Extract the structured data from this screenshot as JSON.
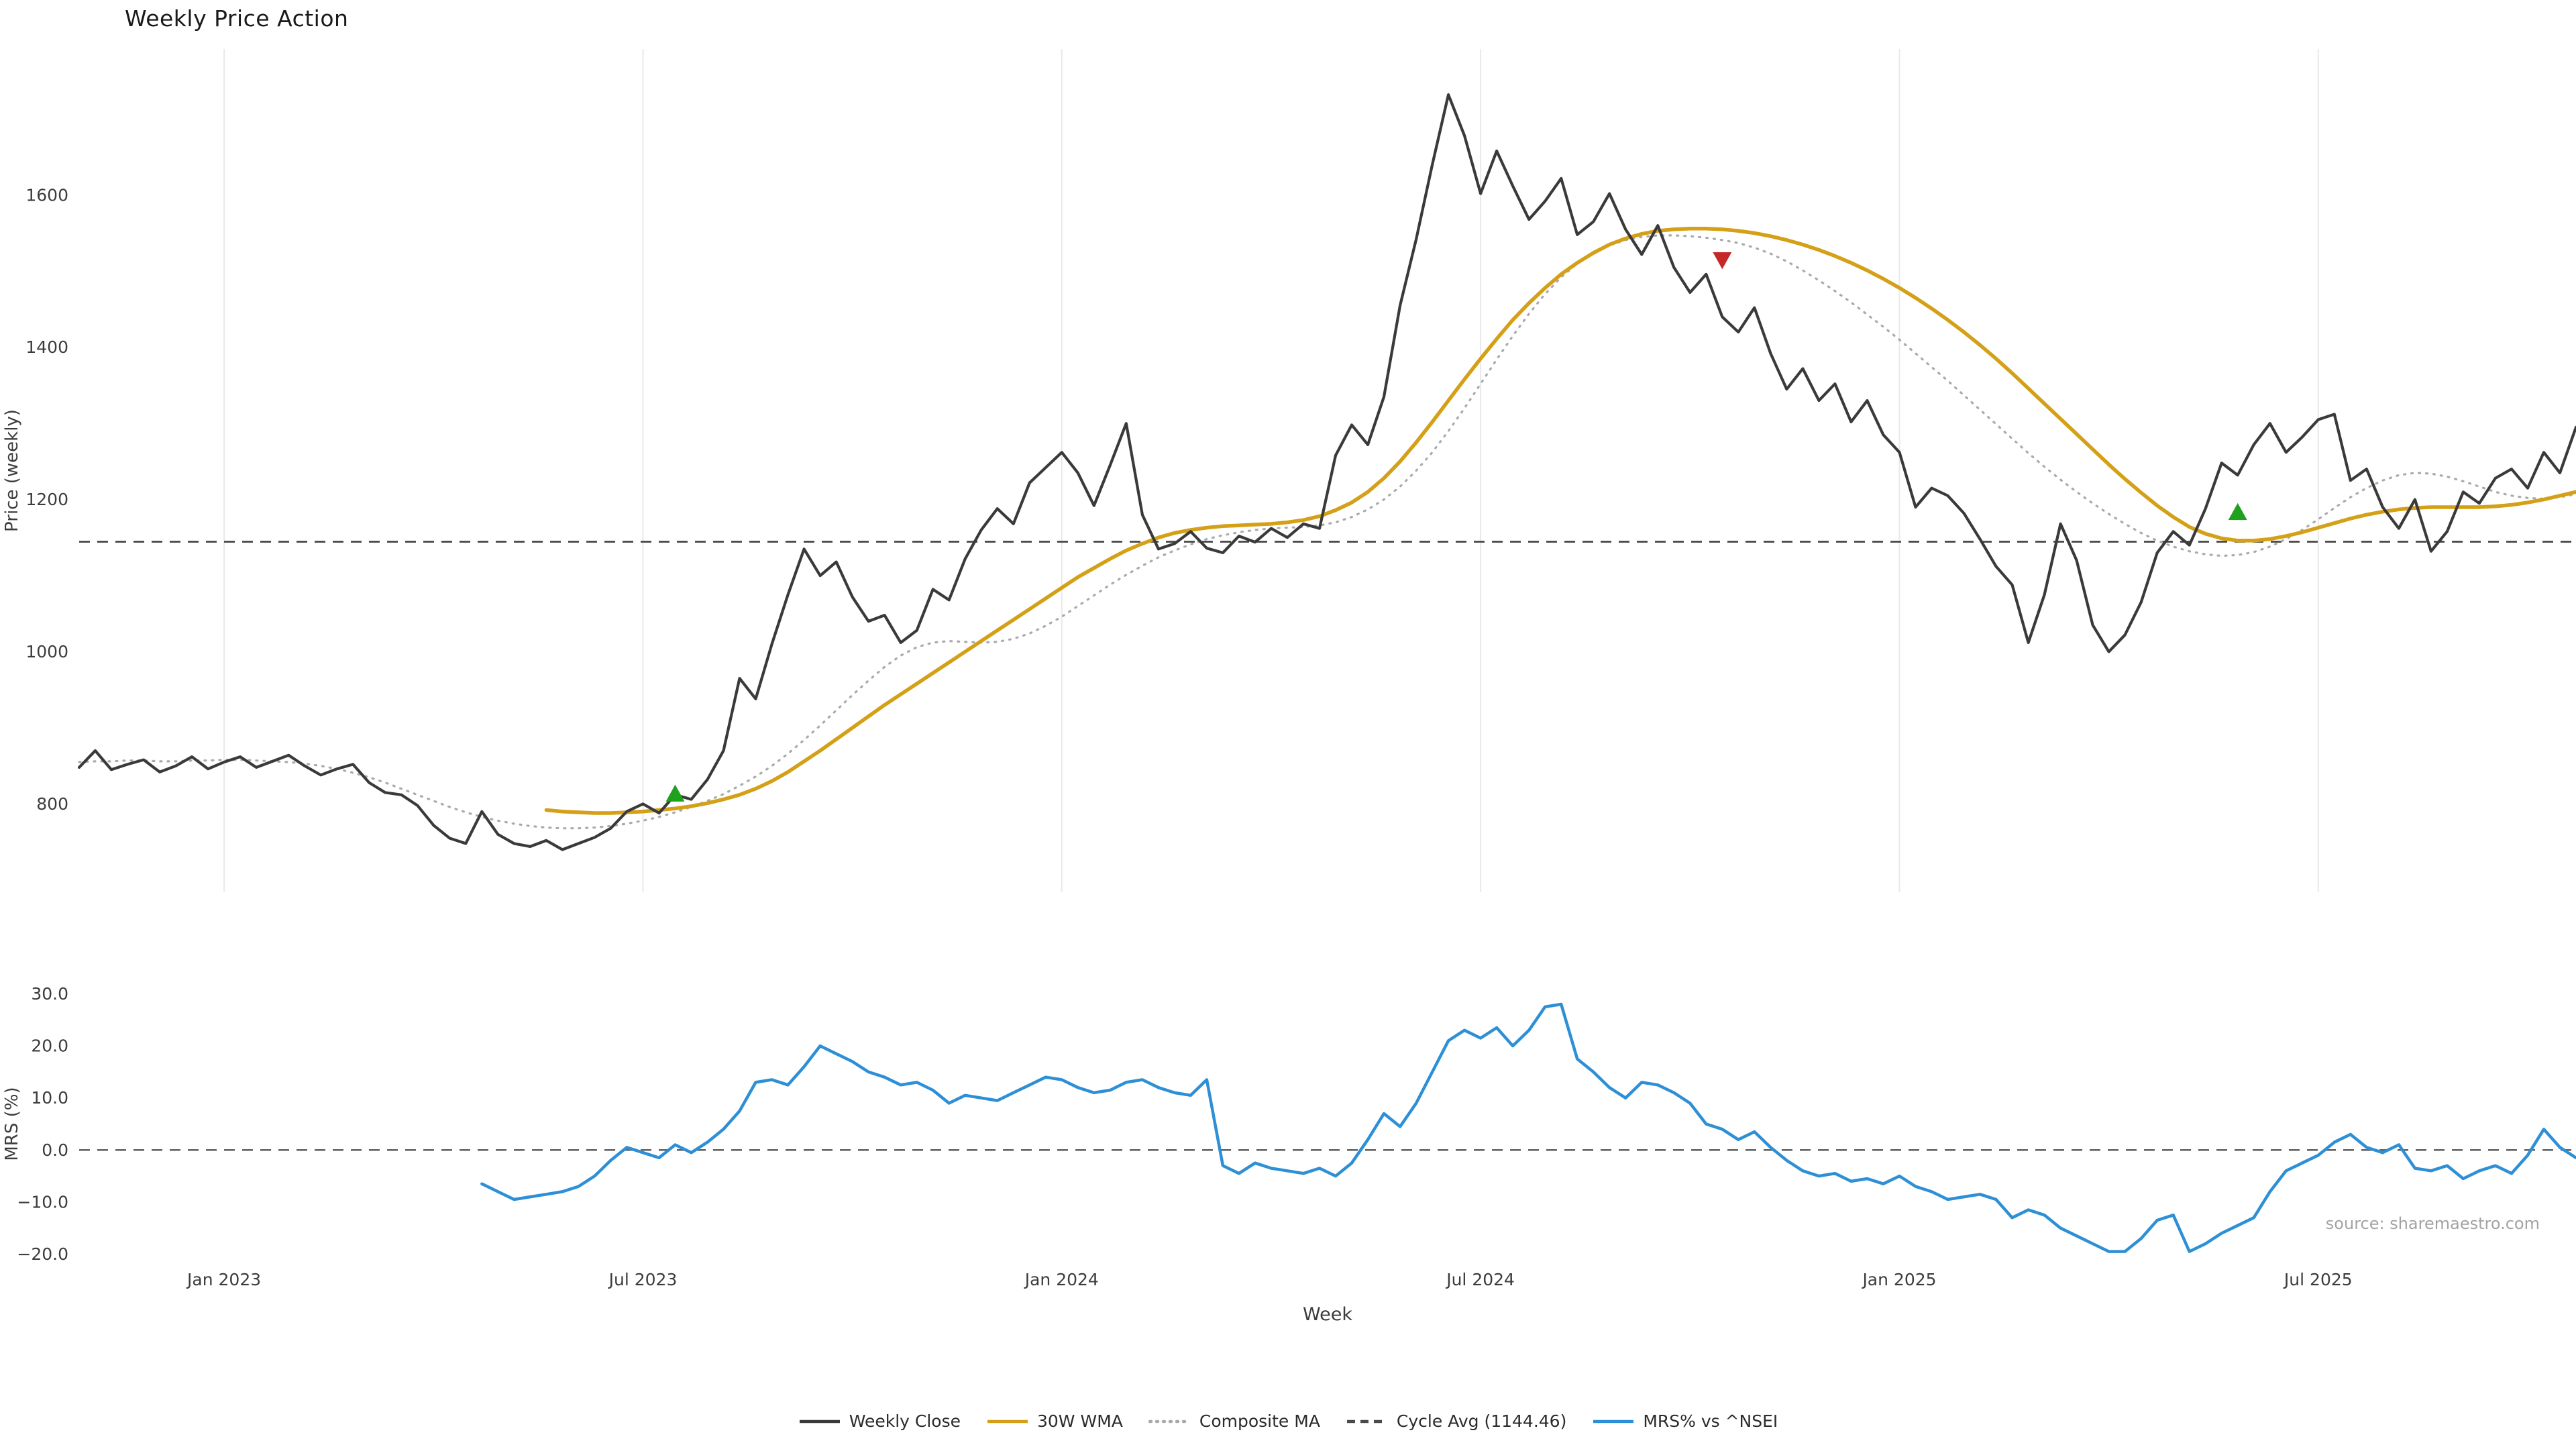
{
  "title": "Weekly Price Action",
  "xlabel": "Week",
  "source": "source: sharemaestro.com",
  "legend": [
    {
      "label": "Weekly Close",
      "color": "#3a3a3a",
      "style": "solid"
    },
    {
      "label": "30W WMA",
      "color": "#d4a017",
      "style": "solid"
    },
    {
      "label": "Composite MA",
      "color": "#aaaaaa",
      "style": "dotted"
    },
    {
      "label": "Cycle Avg (1144.46)",
      "color": "#4a4a4a",
      "style": "dashed"
    },
    {
      "label": "MRS% vs ^NSEI",
      "color": "#2d8fd5",
      "style": "solid"
    }
  ],
  "chart_data": [
    {
      "type": "line",
      "panel_id": "price",
      "title": "Weekly Price Action",
      "ylabel": "Price (weekly)",
      "ylim": [
        684,
        1792
      ],
      "grid": "vertical",
      "yticks": [
        {
          "v": 800,
          "label": "800"
        },
        {
          "v": 1000,
          "label": "1000"
        },
        {
          "v": 1200,
          "label": "1200"
        },
        {
          "v": 1400,
          "label": "1400"
        },
        {
          "v": 1600,
          "label": "1600"
        }
      ],
      "x_axis": {
        "unit": "week_index",
        "min": 0,
        "max": 155,
        "ticks": [
          {
            "w": 9,
            "label": "Jan 2023"
          },
          {
            "w": 35,
            "label": "Jul 2023"
          },
          {
            "w": 61,
            "label": "Jan 2024"
          },
          {
            "w": 87,
            "label": "Jul 2024"
          },
          {
            "w": 113,
            "label": "Jan 2025"
          },
          {
            "w": 139,
            "label": "Jul 2025"
          }
        ]
      },
      "reference_lines": [
        {
          "name": "Cycle Avg (1144.46)",
          "value": 1144.46,
          "style": "dashed",
          "color": "#3f3f3f"
        }
      ],
      "series": [
        {
          "name": "Composite MA",
          "color": "#aaaaaa",
          "style": "dotted",
          "width": 3.2,
          "x_start": 0,
          "values": [
            855,
            856,
            856,
            857,
            857,
            856,
            856,
            857,
            857,
            858,
            858,
            857,
            856,
            855,
            853,
            850,
            846,
            841,
            835,
            828,
            820,
            812,
            804,
            796,
            789,
            783,
            778,
            774,
            771,
            769,
            768,
            768,
            769,
            771,
            774,
            778,
            783,
            789,
            796,
            804,
            813,
            824,
            836,
            850,
            866,
            884,
            903,
            923,
            943,
            962,
            980,
            995,
            1006,
            1012,
            1014,
            1013,
            1012,
            1013,
            1017,
            1024,
            1034,
            1046,
            1060,
            1074,
            1088,
            1101,
            1113,
            1124,
            1133,
            1141,
            1148,
            1153,
            1157,
            1160,
            1162,
            1163,
            1164,
            1166,
            1170,
            1177,
            1187,
            1200,
            1217,
            1238,
            1262,
            1290,
            1320,
            1352,
            1384,
            1415,
            1444,
            1470,
            1492,
            1510,
            1524,
            1534,
            1541,
            1545,
            1547,
            1547,
            1546,
            1544,
            1541,
            1537,
            1531,
            1523,
            1513,
            1501,
            1488,
            1474,
            1459,
            1443,
            1427,
            1410,
            1392,
            1374,
            1356,
            1337,
            1318,
            1299,
            1280,
            1261,
            1243,
            1226,
            1210,
            1195,
            1181,
            1168,
            1156,
            1146,
            1138,
            1132,
            1128,
            1126,
            1127,
            1131,
            1138,
            1148,
            1160,
            1174,
            1189,
            1203,
            1215,
            1225,
            1232,
            1235,
            1234,
            1230,
            1224,
            1217,
            1210,
            1205,
            1202,
            1201,
            1203,
            1207
          ]
        },
        {
          "name": "30W WMA",
          "color": "#d4a017",
          "style": "solid",
          "width": 5.5,
          "x_start": 29,
          "values": [
            792,
            790,
            789,
            788,
            788,
            789,
            790,
            792,
            794,
            797,
            801,
            806,
            812,
            820,
            830,
            842,
            856,
            870,
            885,
            900,
            915,
            930,
            944,
            958,
            972,
            986,
            1000,
            1014,
            1028,
            1042,
            1056,
            1070,
            1084,
            1098,
            1110,
            1122,
            1133,
            1142,
            1150,
            1156,
            1160,
            1163,
            1165,
            1166,
            1167,
            1168,
            1170,
            1173,
            1178,
            1186,
            1196,
            1210,
            1228,
            1250,
            1275,
            1302,
            1330,
            1358,
            1385,
            1411,
            1436,
            1458,
            1478,
            1496,
            1511,
            1524,
            1535,
            1543,
            1549,
            1553,
            1555,
            1556,
            1556,
            1555,
            1553,
            1550,
            1546,
            1541,
            1535,
            1528,
            1520,
            1511,
            1501,
            1490,
            1478,
            1465,
            1451,
            1436,
            1420,
            1403,
            1385,
            1366,
            1346,
            1326,
            1306,
            1286,
            1266,
            1246,
            1227,
            1209,
            1192,
            1177,
            1164,
            1155,
            1149,
            1146,
            1146,
            1148,
            1152,
            1157,
            1163,
            1169,
            1175,
            1180,
            1184,
            1187,
            1189,
            1190,
            1190,
            1190,
            1190,
            1191,
            1193,
            1196,
            1200,
            1205,
            1210
          ]
        },
        {
          "name": "Weekly Close",
          "color": "#3a3a3a",
          "style": "solid",
          "width": 4.2,
          "x_start": 0,
          "values": [
            848,
            870,
            845,
            852,
            858,
            842,
            850,
            862,
            846,
            855,
            862,
            848,
            856,
            864,
            850,
            838,
            846,
            852,
            828,
            815,
            812,
            798,
            772,
            755,
            748,
            790,
            760,
            748,
            744,
            752,
            740,
            748,
            756,
            768,
            790,
            800,
            788,
            812,
            806,
            832,
            870,
            965,
            938,
            1010,
            1075,
            1135,
            1100,
            1118,
            1072,
            1040,
            1048,
            1012,
            1028,
            1082,
            1068,
            1122,
            1160,
            1188,
            1168,
            1222,
            1242,
            1262,
            1235,
            1192,
            1245,
            1300,
            1180,
            1135,
            1142,
            1158,
            1136,
            1130,
            1152,
            1144,
            1162,
            1150,
            1168,
            1162,
            1258,
            1298,
            1272,
            1335,
            1455,
            1542,
            1640,
            1732,
            1678,
            1602,
            1658,
            1612,
            1568,
            1592,
            1622,
            1548,
            1565,
            1602,
            1555,
            1522,
            1560,
            1505,
            1472,
            1496,
            1440,
            1420,
            1452,
            1392,
            1345,
            1372,
            1330,
            1352,
            1302,
            1330,
            1285,
            1262,
            1190,
            1215,
            1205,
            1182,
            1148,
            1112,
            1088,
            1012,
            1075,
            1168,
            1120,
            1035,
            1000,
            1022,
            1065,
            1130,
            1158,
            1140,
            1188,
            1248,
            1232,
            1272,
            1300,
            1262,
            1282,
            1305,
            1312,
            1225,
            1240,
            1190,
            1162,
            1200,
            1132,
            1158,
            1210,
            1195,
            1228,
            1240,
            1215,
            1262,
            1235,
            1295
          ]
        }
      ],
      "markers": [
        {
          "signal": "buy",
          "shape": "triangle-up",
          "color": "#1fa01f",
          "week": 37,
          "price": 813
        },
        {
          "signal": "sell",
          "shape": "triangle-down",
          "color": "#c62828",
          "week": 102,
          "price": 1515
        },
        {
          "signal": "buy",
          "shape": "triangle-up",
          "color": "#1fa01f",
          "week": 134,
          "price": 1183
        }
      ]
    },
    {
      "type": "line",
      "panel_id": "mrs",
      "ylabel": "MRS (%)",
      "ylim": [
        -22,
        32
      ],
      "yticks": [
        {
          "v": -20,
          "label": "−20.0"
        },
        {
          "v": -10,
          "label": "−10.0"
        },
        {
          "v": 0,
          "label": "0.0"
        },
        {
          "v": 10,
          "label": "10.0"
        },
        {
          "v": 20,
          "label": "20.0"
        },
        {
          "v": 30,
          "label": "30.0"
        }
      ],
      "reference_lines": [
        {
          "name": "zero",
          "value": 0,
          "style": "dashed",
          "color": "#666666"
        }
      ],
      "series": [
        {
          "name": "MRS% vs ^NSEI",
          "color": "#2d8fd5",
          "style": "solid",
          "width": 4.5,
          "x_start": 25,
          "values": [
            -6.5,
            -8,
            -9.5,
            -9,
            -8.5,
            -8,
            -7,
            -5,
            -2,
            0.5,
            -0.5,
            -1.5,
            1,
            -0.5,
            1.5,
            4,
            7.5,
            13,
            13.5,
            12.5,
            16,
            20,
            18.5,
            17,
            15,
            14,
            12.5,
            13,
            11.5,
            9,
            10.5,
            10,
            9.5,
            11,
            12.5,
            14,
            13.5,
            12,
            11,
            11.5,
            13,
            13.5,
            12,
            11,
            10.5,
            13.5,
            -3,
            -4.5,
            -2.5,
            -3.5,
            -4,
            -4.5,
            -3.5,
            -5,
            -2.5,
            2,
            7,
            4.5,
            9,
            15,
            21,
            23,
            21.5,
            23.5,
            20,
            23,
            27.5,
            28,
            17.5,
            15,
            12,
            10,
            13,
            12.5,
            11,
            9,
            5,
            4,
            2,
            3.5,
            0.5,
            -2,
            -4,
            -5,
            -4.5,
            -6,
            -5.5,
            -6.5,
            -5,
            -7,
            -8,
            -9.5,
            -9,
            -8.5,
            -9.5,
            -13,
            -11.5,
            -12.5,
            -15,
            -16.5,
            -18,
            -19.5,
            -19.5,
            -17,
            -13.5,
            -12.5,
            -19.5,
            -18,
            -16,
            -14.5,
            -13,
            -8,
            -4,
            -2.5,
            -1,
            1.5,
            3,
            0.5,
            -0.5,
            1,
            -3.5,
            -4,
            -3,
            -5.5,
            -4,
            -3,
            -4.5,
            -1,
            4,
            0.5,
            -1.5
          ]
        }
      ]
    }
  ]
}
